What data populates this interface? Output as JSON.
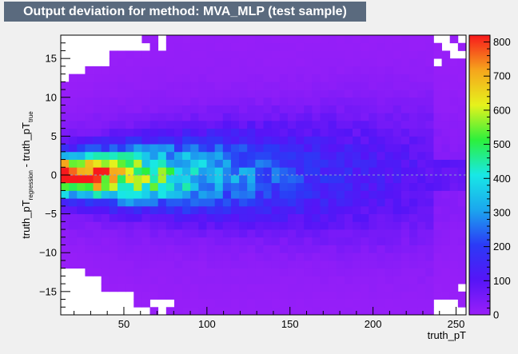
{
  "chart_data": {
    "type": "heatmap",
    "title": "Output deviation for method: MVA_MLP (test sample)",
    "xlabel": "truth_pT",
    "ylabel": {
      "main": "truth_pT",
      "sub1": "regression",
      "mid": " - truth_pT",
      "sub2": "true"
    },
    "xlim": [
      12,
      256
    ],
    "ylim": [
      -18,
      18
    ],
    "xticks": [
      50,
      100,
      150,
      200,
      250
    ],
    "yticks": [
      -15,
      -10,
      -5,
      0,
      5,
      10,
      15
    ],
    "colorbar": {
      "zlim": [
        0,
        820
      ],
      "ticks": [
        0,
        100,
        200,
        300,
        400,
        500,
        600,
        700,
        800
      ]
    },
    "bins": {
      "x_count": 50,
      "y_count": 36
    },
    "color_scale": [
      "#9a1ff8",
      "#5515f7",
      "#2b3af6",
      "#1ba6ee",
      "#18e8e6",
      "#2cf03c",
      "#e6f21c",
      "#f6a51c",
      "#f7191c"
    ],
    "density_model": {
      "core_peak": 815,
      "core_x": 18,
      "core_decay_per_unit_x": 0.012,
      "floor_count": 25,
      "sigma_at_low_x": 1.6,
      "sigma_growth_per_unit_x": 0.022,
      "tail_weight": 0.09,
      "tail_width_factor": 2.8
    },
    "grid": false,
    "legend": "colorbar-right"
  }
}
